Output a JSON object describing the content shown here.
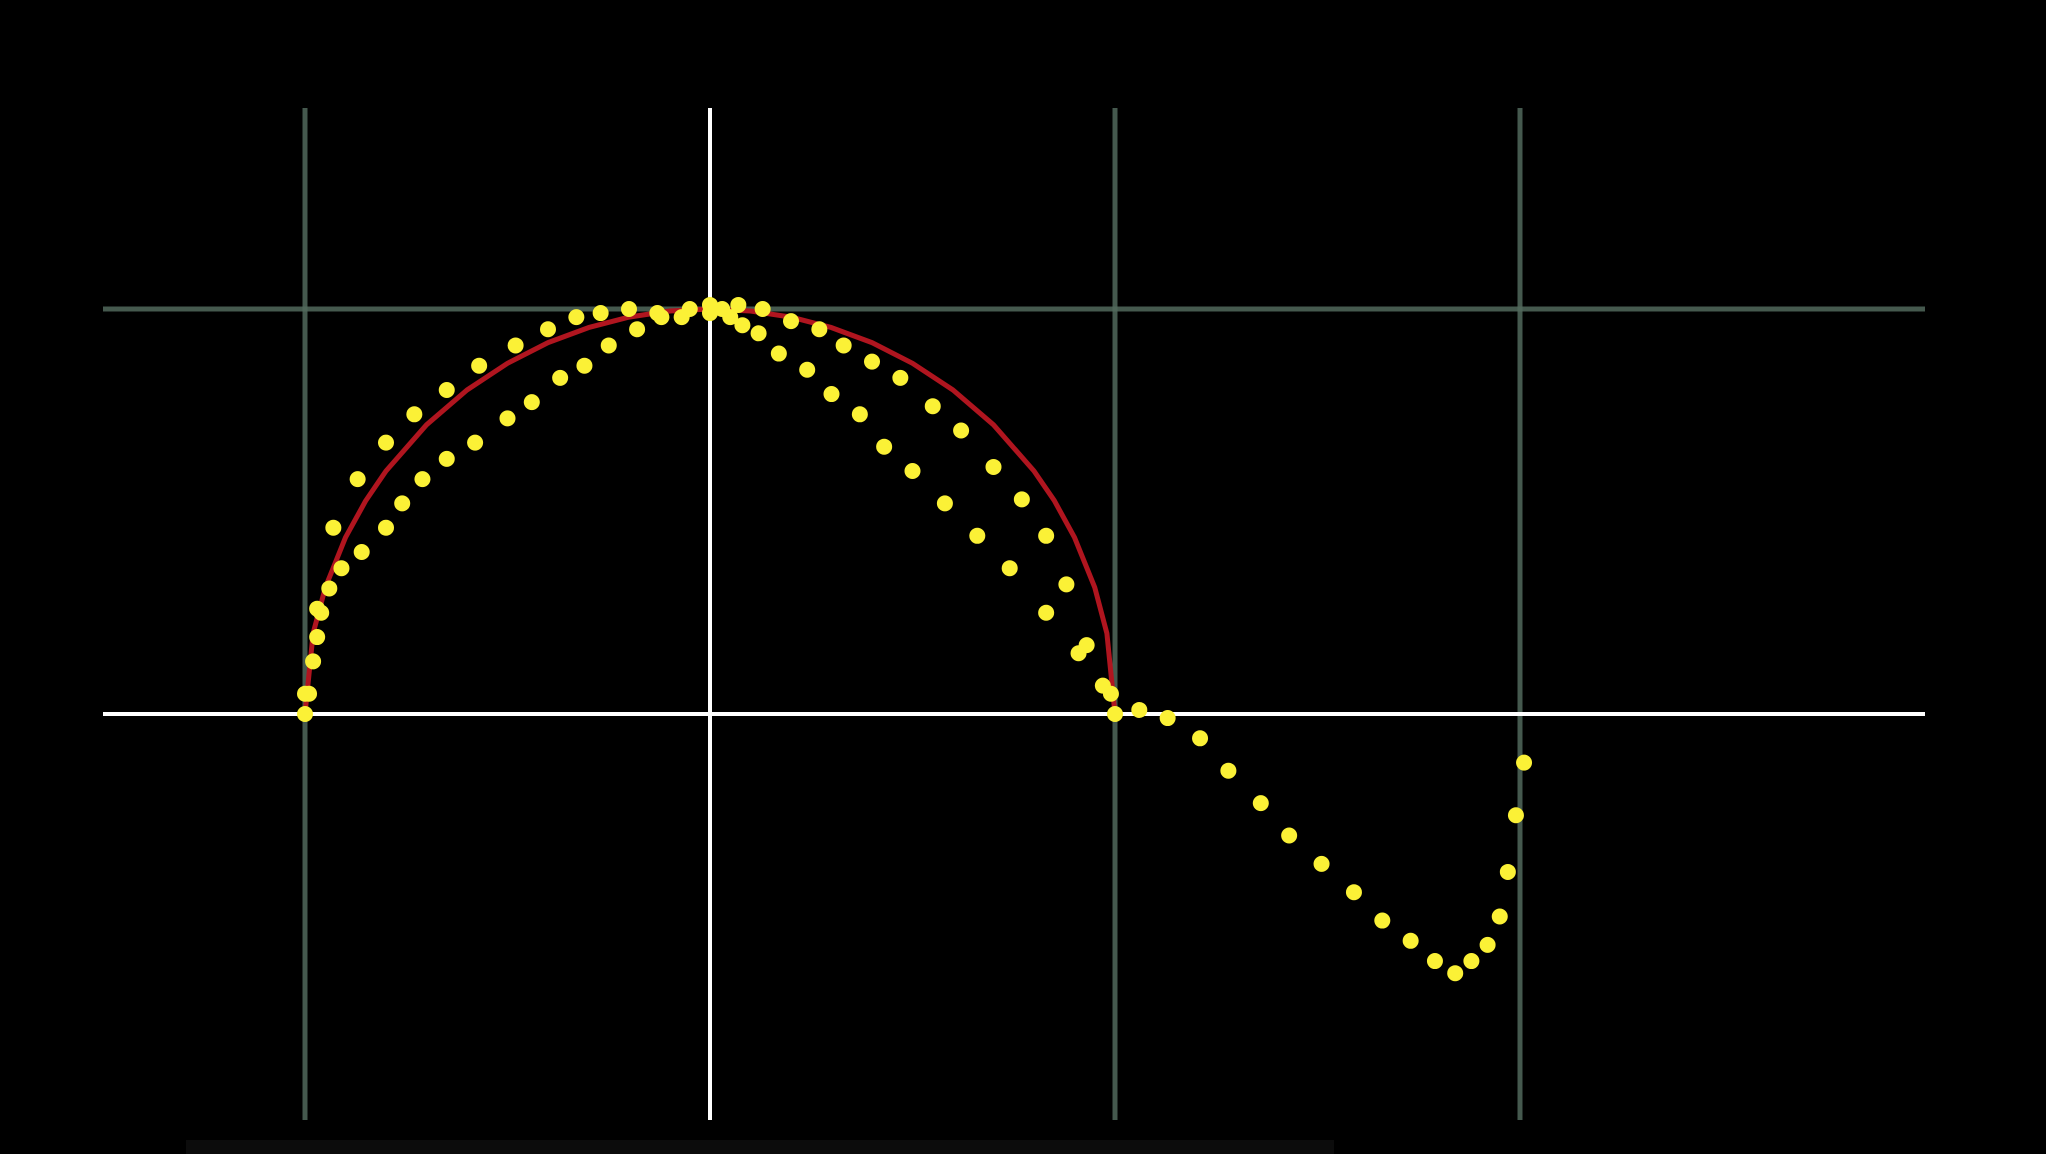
{
  "chart_data": {
    "type": "scatter",
    "xlim": [
      -1,
      3
    ],
    "ylim": [
      -1,
      1
    ],
    "axis_lines": {
      "x": 0,
      "y": 0
    },
    "grid": {
      "x": [
        -1,
        1,
        2
      ],
      "y": [
        1
      ]
    },
    "colors": {
      "background": "#000000",
      "grid": "#51685c",
      "axis": "#ffffff",
      "points": "#fbf136",
      "curve": "#b0151f"
    },
    "series": [
      {
        "type": "scatter",
        "x": [
          -1.0,
          -0.97,
          -0.93,
          -0.87,
          -0.8,
          -0.73,
          -0.65,
          -0.57,
          -0.48,
          -0.4,
          -0.33,
          -0.27,
          -0.2,
          -0.13,
          -0.07,
          0.0,
          0.07,
          0.13,
          0.2,
          0.27,
          0.33,
          0.4,
          0.47,
          0.55,
          0.62,
          0.7,
          0.77,
          0.83,
          0.88,
          0.93,
          0.97,
          1.0
        ],
        "y": [
          0.05,
          0.26,
          0.46,
          0.58,
          0.67,
          0.74,
          0.8,
          0.86,
          0.91,
          0.95,
          0.98,
          0.99,
          1.0,
          0.99,
          0.98,
          0.99,
          1.01,
          1.0,
          0.97,
          0.95,
          0.91,
          0.87,
          0.83,
          0.76,
          0.7,
          0.61,
          0.53,
          0.44,
          0.32,
          0.17,
          0.07,
          0.0
        ]
      },
      {
        "type": "scatter",
        "x": [
          -1.0,
          -0.99,
          -0.98,
          -0.97,
          -0.96,
          -0.94,
          -0.91,
          -0.86,
          -0.8,
          -0.76,
          -0.71,
          -0.65,
          -0.58,
          -0.5,
          -0.44,
          -0.37,
          -0.31,
          -0.25,
          -0.18,
          -0.12,
          -0.05,
          0.0,
          0.03,
          0.05,
          0.08,
          0.12,
          0.17,
          0.24,
          0.3,
          0.37,
          0.43,
          0.5,
          0.58,
          0.66,
          0.74,
          0.83,
          0.91,
          0.99,
          1.06,
          1.13,
          1.21,
          1.28,
          1.36,
          1.43,
          1.51,
          1.59,
          1.66,
          1.73,
          1.79,
          1.84,
          1.88,
          1.92,
          1.95,
          1.97,
          1.99,
          2.01
        ],
        "y": [
          0.0,
          0.05,
          0.13,
          0.19,
          0.25,
          0.31,
          0.36,
          0.4,
          0.46,
          0.52,
          0.58,
          0.63,
          0.67,
          0.73,
          0.77,
          0.83,
          0.86,
          0.91,
          0.95,
          0.98,
          1.0,
          1.01,
          1.0,
          0.98,
          0.96,
          0.94,
          0.89,
          0.85,
          0.79,
          0.74,
          0.66,
          0.6,
          0.52,
          0.44,
          0.36,
          0.25,
          0.15,
          0.05,
          0.01,
          -0.01,
          -0.06,
          -0.14,
          -0.22,
          -0.3,
          -0.37,
          -0.44,
          -0.51,
          -0.56,
          -0.61,
          -0.64,
          -0.61,
          -0.57,
          -0.5,
          -0.39,
          -0.25,
          -0.12
        ]
      }
    ],
    "curve": {
      "type": "line",
      "x": [
        -1.0,
        -0.98,
        -0.95,
        -0.9,
        -0.85,
        -0.8,
        -0.7,
        -0.6,
        -0.5,
        -0.4,
        -0.3,
        -0.2,
        -0.1,
        0.0,
        0.1,
        0.2,
        0.3,
        0.4,
        0.5,
        0.6,
        0.7,
        0.8,
        0.85,
        0.9,
        0.95,
        0.98,
        1.0
      ],
      "y": [
        0.0,
        0.199,
        0.312,
        0.436,
        0.527,
        0.6,
        0.714,
        0.8,
        0.866,
        0.917,
        0.954,
        0.98,
        0.995,
        1.0,
        0.995,
        0.98,
        0.954,
        0.917,
        0.866,
        0.8,
        0.714,
        0.6,
        0.527,
        0.436,
        0.312,
        0.199,
        0.0
      ]
    }
  }
}
